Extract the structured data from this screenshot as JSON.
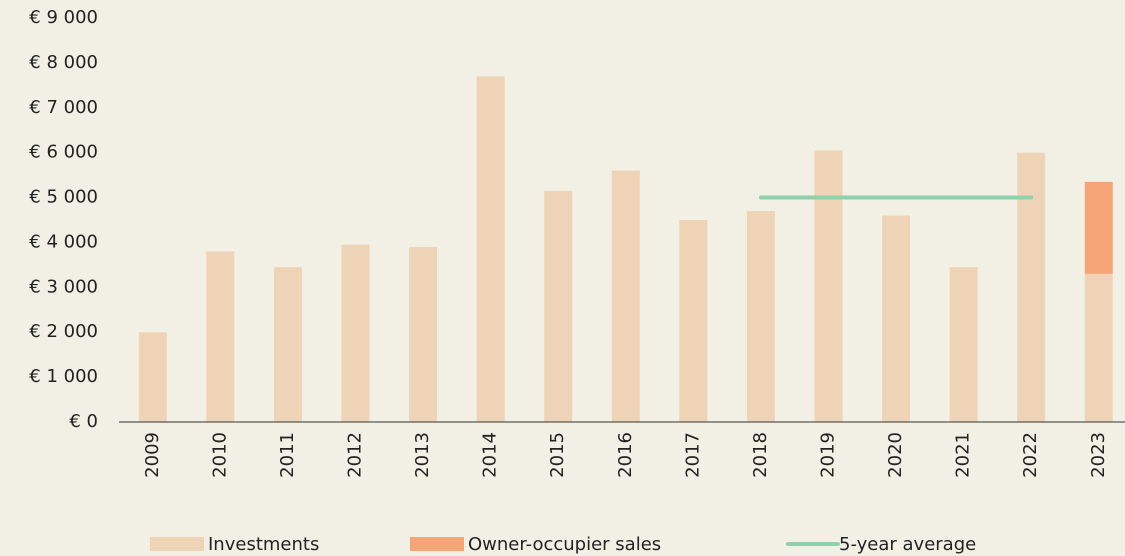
{
  "chart_data": {
    "type": "bar",
    "stacked": true,
    "categories": [
      "2009",
      "2010",
      "2011",
      "2012",
      "2013",
      "2014",
      "2015",
      "2016",
      "2017",
      "2018",
      "2019",
      "2020",
      "2021",
      "2022",
      "2023"
    ],
    "series": [
      {
        "name": "Investments",
        "color": "#efd3b6",
        "values": [
          2000,
          3800,
          3450,
          3950,
          3900,
          7700,
          5150,
          5600,
          4500,
          4700,
          6050,
          4600,
          3450,
          6000,
          3300
        ]
      },
      {
        "name": "Owner-occupier sales",
        "color": "#f5a477",
        "values": [
          null,
          null,
          null,
          null,
          null,
          null,
          null,
          null,
          null,
          null,
          null,
          null,
          null,
          null,
          2050
        ]
      },
      {
        "name": "5-year average",
        "type": "line",
        "color": "#8fd1aa",
        "values": [
          null,
          null,
          null,
          null,
          null,
          null,
          null,
          null,
          null,
          5000,
          5000,
          5000,
          5000,
          5000,
          null
        ]
      }
    ],
    "ylim": [
      0,
      9000
    ],
    "yticks": [
      {
        "value": 0,
        "label": "€ 0"
      },
      {
        "value": 1000,
        "label": "€ 1 000"
      },
      {
        "value": 2000,
        "label": "€ 2 000"
      },
      {
        "value": 3000,
        "label": "€ 3 000"
      },
      {
        "value": 4000,
        "label": "€ 4 000"
      },
      {
        "value": 5000,
        "label": "€ 5 000"
      },
      {
        "value": 6000,
        "label": "€ 6 000"
      },
      {
        "value": 7000,
        "label": "€ 7 000"
      },
      {
        "value": 8000,
        "label": "€ 8 000"
      },
      {
        "value": 9000,
        "label": "€ 9 000"
      }
    ],
    "legend": "bottom"
  }
}
